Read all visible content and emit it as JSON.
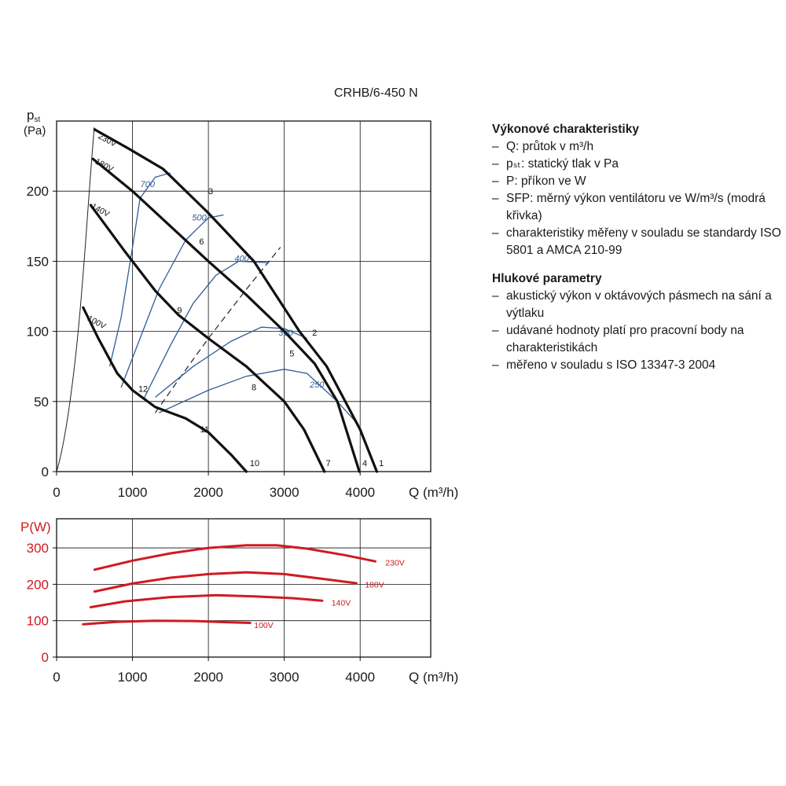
{
  "title": "CRHB/6-450 N",
  "info": {
    "sections": [
      {
        "heading": "Výkonové charakteristiky",
        "items": [
          "Q: průtok v m³/h",
          "pₛₜ: statický tlak v Pa",
          "P: příkon ve W",
          "SFP: měrný výkon ventilátoru ve W/m³/s (modrá křivka)",
          "charakteristiky měřeny v souladu se standardy ISO 5801 a AMCA 210-99"
        ]
      },
      {
        "heading": "Hlukové parametry",
        "items": [
          "akustický výkon v oktávových pásmech na sání a výtlaku",
          "udávané hodnoty platí pro pracovní body na charakteristikách",
          "měřeno v souladu s ISO 13347-3 2004"
        ]
      }
    ]
  },
  "chart_data": [
    {
      "type": "line",
      "ylabel_main": "p",
      "ylabel_sub": "st",
      "yunit": "(Pa)",
      "xlabel": "Q (m³/h)",
      "xlim": [
        0,
        4930
      ],
      "ylim": [
        0,
        250
      ],
      "xticks": [
        0,
        1000,
        2000,
        3000,
        4000
      ],
      "yticks": [
        0,
        50,
        100,
        150,
        200
      ],
      "grid": true,
      "colors": {
        "fan": "#111111",
        "sfp": "#2f5c97",
        "system": "#222222",
        "label_sfp": "#2f5c97"
      },
      "series": [
        {
          "name": "230V",
          "label_at": [
            540,
            238
          ],
          "points": [
            [
              500,
              244
            ],
            [
              960,
              230
            ],
            [
              1400,
              216
            ],
            [
              1990,
              185
            ],
            [
              2600,
              150
            ],
            [
              3200,
              100
            ],
            [
              3560,
              75
            ],
            [
              4000,
              30
            ],
            [
              4220,
              0
            ]
          ]
        },
        {
          "name": "180V",
          "label_at": [
            500,
            220
          ],
          "points": [
            [
              480,
              223
            ],
            [
              1000,
              200
            ],
            [
              1500,
              175
            ],
            [
              2000,
              150
            ],
            [
              2500,
              126
            ],
            [
              3000,
              100
            ],
            [
              3400,
              77
            ],
            [
              3700,
              50
            ],
            [
              3990,
              0
            ]
          ]
        },
        {
          "name": "140V",
          "label_at": [
            450,
            188
          ],
          "points": [
            [
              450,
              190
            ],
            [
              900,
              157
            ],
            [
              1300,
              129
            ],
            [
              1600,
              112
            ],
            [
              2000,
              95
            ],
            [
              2500,
              75
            ],
            [
              3000,
              50
            ],
            [
              3260,
              30
            ],
            [
              3530,
              0
            ]
          ]
        },
        {
          "name": "100V",
          "label_at": [
            400,
            108
          ],
          "points": [
            [
              350,
              117
            ],
            [
              550,
              95
            ],
            [
              800,
              70
            ],
            [
              1000,
              58
            ],
            [
              1300,
              46
            ],
            [
              1700,
              38
            ],
            [
              2000,
              28
            ],
            [
              2300,
              12
            ],
            [
              2500,
              0
            ]
          ]
        }
      ],
      "sfp_curves": [
        {
          "name": "700",
          "label_at": [
            1200,
            203
          ],
          "points": [
            [
              700,
              75
            ],
            [
              850,
              110
            ],
            [
              1000,
              160
            ],
            [
              1100,
              195
            ],
            [
              1300,
              210
            ],
            [
              1500,
              213
            ]
          ]
        },
        {
          "name": "500",
          "label_at": [
            1880,
            179
          ],
          "points": [
            [
              850,
              60
            ],
            [
              1100,
              95
            ],
            [
              1350,
              130
            ],
            [
              1700,
              165
            ],
            [
              2000,
              181
            ],
            [
              2200,
              183
            ]
          ]
        },
        {
          "name": "400",
          "label_at": [
            2440,
            150
          ],
          "points": [
            [
              1150,
              52
            ],
            [
              1500,
              90
            ],
            [
              1800,
              120
            ],
            [
              2100,
              140
            ],
            [
              2400,
              150
            ],
            [
              2800,
              149
            ]
          ]
        },
        {
          "name": "300",
          "label_at": [
            3020,
            97
          ],
          "points": [
            [
              1300,
              53
            ],
            [
              1800,
              75
            ],
            [
              2300,
              93
            ],
            [
              2700,
              103
            ],
            [
              3000,
              102
            ],
            [
              3300,
              95
            ]
          ]
        },
        {
          "name": "250",
          "label_at": [
            3430,
            60
          ],
          "points": [
            [
              1350,
              42
            ],
            [
              2000,
              58
            ],
            [
              2500,
              68
            ],
            [
              3000,
              73
            ],
            [
              3300,
              70
            ],
            [
              3700,
              50
            ],
            [
              3950,
              35
            ]
          ]
        }
      ],
      "system_curve": {
        "name": "",
        "points": [
          [
            1300,
            42
          ],
          [
            1600,
            65
          ],
          [
            2000,
            95
          ],
          [
            2500,
            130
          ],
          [
            2800,
            150
          ],
          [
            2950,
            160
          ]
        ]
      },
      "point_labels": [
        {
          "text": "1",
          "x": 4280,
          "y": 4
        },
        {
          "text": "2",
          "x": 3400,
          "y": 97
        },
        {
          "text": "3",
          "x": 2030,
          "y": 198
        },
        {
          "text": "4",
          "x": 4060,
          "y": 4
        },
        {
          "text": "5",
          "x": 3100,
          "y": 82
        },
        {
          "text": "6",
          "x": 1910,
          "y": 162
        },
        {
          "text": "7",
          "x": 3580,
          "y": 4
        },
        {
          "text": "8",
          "x": 2600,
          "y": 58
        },
        {
          "text": "9",
          "x": 1620,
          "y": 113
        },
        {
          "text": "10",
          "x": 2610,
          "y": 4
        },
        {
          "text": "11",
          "x": 1950,
          "y": 28
        },
        {
          "text": "12",
          "x": 1140,
          "y": 57
        }
      ]
    },
    {
      "type": "line",
      "ylabel": "P(W)",
      "xlabel": "Q (m³/h)",
      "xlim": [
        0,
        4930
      ],
      "ylim": [
        0,
        380
      ],
      "xticks": [
        0,
        1000,
        2000,
        3000,
        4000
      ],
      "yticks": [
        0,
        100,
        200,
        300
      ],
      "grid": true,
      "colors": {
        "line": "#d01a22",
        "ylabel": "#d01a22"
      },
      "series": [
        {
          "name": "230V",
          "label_at": [
            4270,
            260
          ],
          "points": [
            [
              500,
              240
            ],
            [
              1000,
              265
            ],
            [
              1500,
              285
            ],
            [
              2000,
              300
            ],
            [
              2500,
              307
            ],
            [
              2900,
              307
            ],
            [
              3300,
              298
            ],
            [
              3800,
              280
            ],
            [
              4200,
              263
            ]
          ]
        },
        {
          "name": "180V",
          "label_at": [
            4000,
            200
          ],
          "points": [
            [
              500,
              180
            ],
            [
              1000,
              202
            ],
            [
              1500,
              218
            ],
            [
              2000,
              228
            ],
            [
              2500,
              233
            ],
            [
              3000,
              228
            ],
            [
              3500,
              215
            ],
            [
              3950,
              203
            ]
          ]
        },
        {
          "name": "140V",
          "label_at": [
            3560,
            150
          ],
          "points": [
            [
              450,
              137
            ],
            [
              900,
              153
            ],
            [
              1500,
              165
            ],
            [
              2100,
              170
            ],
            [
              2600,
              167
            ],
            [
              3100,
              162
            ],
            [
              3500,
              155
            ]
          ]
        },
        {
          "name": "100V",
          "label_at": [
            2540,
            88
          ],
          "points": [
            [
              350,
              90
            ],
            [
              800,
              97
            ],
            [
              1300,
              100
            ],
            [
              1800,
              99
            ],
            [
              2200,
              96
            ],
            [
              2550,
              94
            ]
          ]
        }
      ]
    }
  ]
}
